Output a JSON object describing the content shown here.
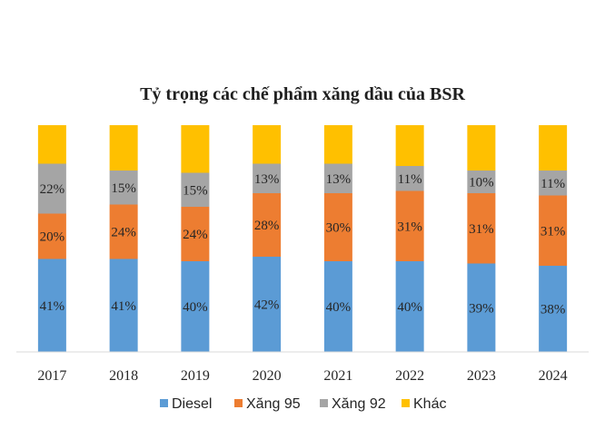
{
  "chart_data": {
    "type": "bar",
    "stacked": true,
    "title": "Tỷ trọng các chế phẩm xăng dầu của BSR",
    "categories": [
      "2017",
      "2018",
      "2019",
      "2020",
      "2021",
      "2022",
      "2023",
      "2024"
    ],
    "series": [
      {
        "name": "Diesel",
        "color": "#5b9bd5",
        "values": [
          41,
          41,
          40,
          42,
          40,
          40,
          39,
          38
        ],
        "labels": [
          "41%",
          "41%",
          "40%",
          "42%",
          "40%",
          "40%",
          "39%",
          "38%"
        ]
      },
      {
        "name": "Xăng 95",
        "color": "#ed7d31",
        "values": [
          20,
          24,
          24,
          28,
          30,
          31,
          31,
          31
        ],
        "labels": [
          "20%",
          "24%",
          "24%",
          "28%",
          "30%",
          "31%",
          "31%",
          "31%"
        ]
      },
      {
        "name": "Xăng 92",
        "color": "#a5a5a5",
        "values": [
          22,
          15,
          15,
          13,
          13,
          11,
          10,
          11
        ],
        "labels": [
          "22%",
          "15%",
          "15%",
          "13%",
          "13%",
          "11%",
          "10%",
          "11%"
        ]
      },
      {
        "name": "Khác",
        "color": "#ffc000",
        "values": [
          17,
          20,
          21,
          17,
          17,
          18,
          20,
          20
        ],
        "labels": [
          "",
          "",
          "",
          "",
          "",
          "",
          "",
          ""
        ]
      }
    ],
    "ylim": [
      0,
      100
    ],
    "xlabel": "",
    "ylabel": "",
    "grid": false,
    "legend_position": "bottom"
  }
}
